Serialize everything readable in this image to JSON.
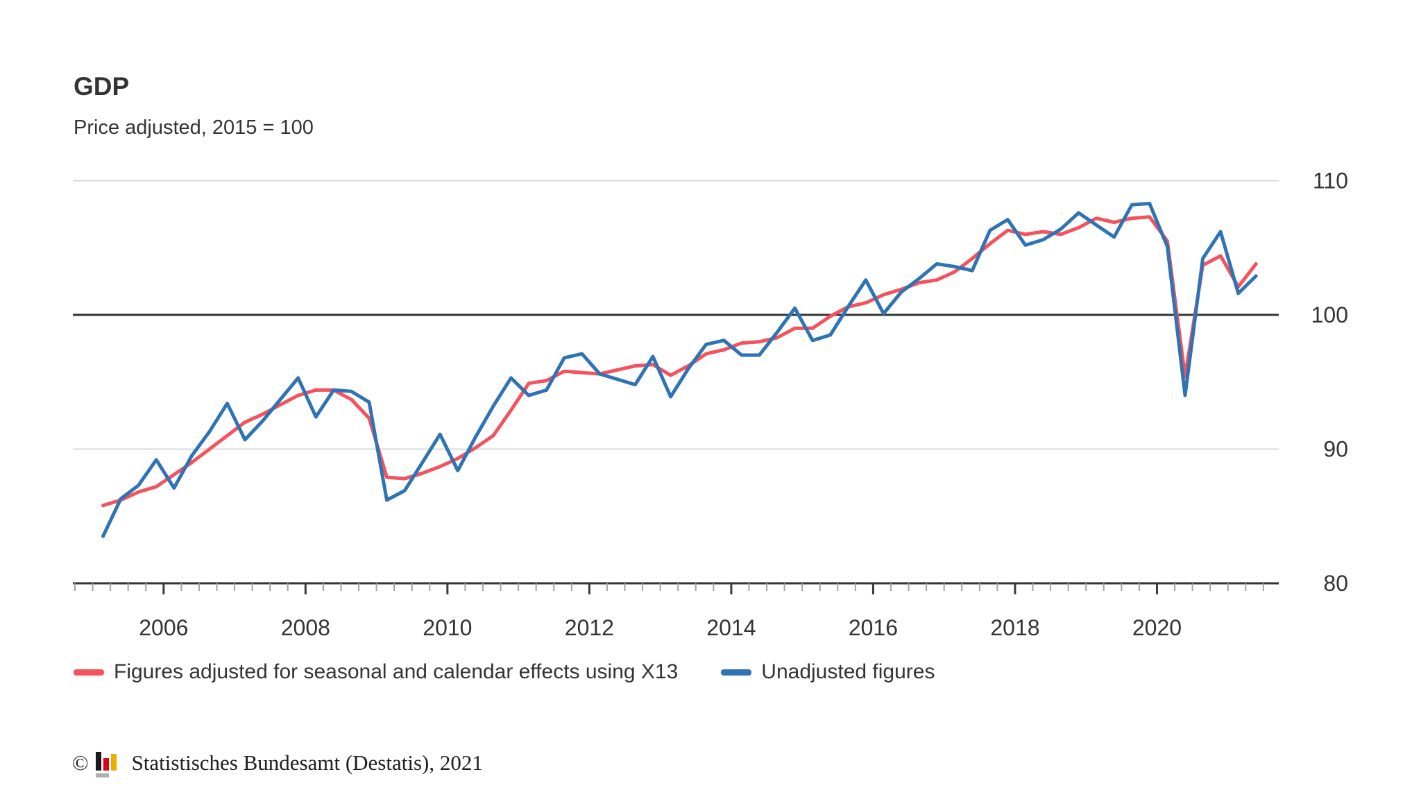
{
  "title": "GDP",
  "subtitle": "Price adjusted, 2015 = 100",
  "legend": {
    "adjusted_label": "Figures adjusted for seasonal and calendar effects using X13",
    "unadjusted_label": "Unadjusted figures"
  },
  "footer": {
    "copyright_symbol": "©",
    "source_text": "Statistisches Bundesamt (Destatis), 2021"
  },
  "colors": {
    "adjusted_line": "#f4525d",
    "unadjusted_line": "#2e73b3",
    "baseline": "#333333",
    "gridline": "#d8d8d8",
    "axis": "#333333",
    "minor_tick": "#a3a3a3",
    "major_tick": "#3b3b3b",
    "label_text": "#333333"
  },
  "chart_data": {
    "type": "line",
    "title": "GDP",
    "subtitle": "Price adjusted, 2015 = 100",
    "frequency": "quarterly",
    "x_start": "2005Q1",
    "x_end": "2021Q2",
    "x_tick_labels": [
      "2006",
      "2008",
      "2010",
      "2012",
      "2014",
      "2016",
      "2018",
      "2020"
    ],
    "y_ticks": [
      80,
      90,
      100,
      110
    ],
    "ylim": [
      80,
      112.5
    ],
    "baseline_value": 100,
    "grid": "horizontal-only",
    "legend_position": "bottom",
    "series": [
      {
        "name": "Figures adjusted for seasonal and calendar effects using X13",
        "color": "#f4525d",
        "values": [
          85.8,
          86.2,
          86.8,
          87.2,
          88.1,
          89.0,
          90.0,
          91.0,
          92.0,
          92.6,
          93.3,
          94.0,
          94.4,
          94.4,
          93.7,
          92.3,
          87.9,
          87.8,
          88.2,
          88.7,
          89.3,
          90.1,
          91.0,
          92.9,
          94.9,
          95.1,
          95.8,
          95.7,
          95.6,
          95.9,
          96.2,
          96.3,
          95.5,
          96.2,
          97.1,
          97.4,
          97.9,
          98.0,
          98.3,
          99.0,
          99.0,
          99.9,
          100.6,
          100.9,
          101.5,
          101.9,
          102.4,
          102.6,
          103.2,
          104.2,
          105.3,
          106.3,
          106.0,
          106.2,
          106.0,
          106.5,
          107.2,
          106.9,
          107.2,
          107.3,
          105.5,
          95.4,
          103.7,
          104.4,
          102.1,
          103.8
        ]
      },
      {
        "name": "Unadjusted figures",
        "color": "#2e73b3",
        "values": [
          83.5,
          86.3,
          87.3,
          89.2,
          87.1,
          89.5,
          91.3,
          93.4,
          90.7,
          92.1,
          93.7,
          95.3,
          92.4,
          94.4,
          94.3,
          93.5,
          86.2,
          86.9,
          89.0,
          91.1,
          88.4,
          90.9,
          93.2,
          95.3,
          94.0,
          94.4,
          96.8,
          97.1,
          95.6,
          95.2,
          94.8,
          96.9,
          93.9,
          96.0,
          97.8,
          98.1,
          97.0,
          97.0,
          98.7,
          100.5,
          98.1,
          98.5,
          100.6,
          102.6,
          100.1,
          101.7,
          102.7,
          103.8,
          103.6,
          103.3,
          106.3,
          107.1,
          105.2,
          105.6,
          106.4,
          107.6,
          106.7,
          105.8,
          108.2,
          108.3,
          105.1,
          94.0,
          104.2,
          106.2,
          101.6,
          102.9
        ]
      }
    ]
  }
}
